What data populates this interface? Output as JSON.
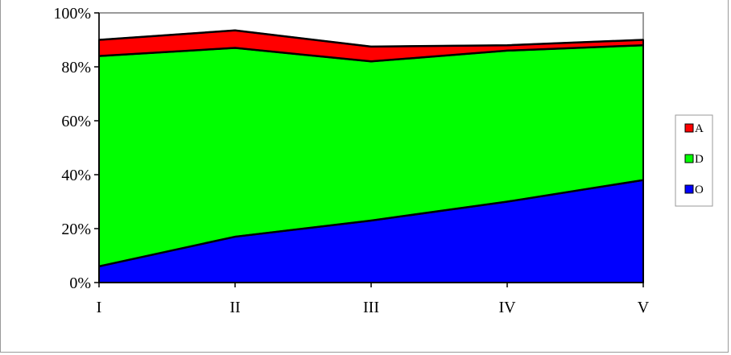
{
  "chart_data": {
    "type": "area",
    "stacked": true,
    "categories": [
      "I",
      "II",
      "III",
      "IV",
      "V"
    ],
    "series": [
      {
        "name": "O",
        "values": [
          6,
          17,
          23,
          30,
          38
        ],
        "color": "#0000ff"
      },
      {
        "name": "D",
        "values": [
          78,
          70,
          59,
          56,
          50
        ],
        "color": "#00ff00"
      },
      {
        "name": "A",
        "values": [
          6,
          6.5,
          5.5,
          2,
          2
        ],
        "color": "#ff0000"
      }
    ],
    "ylim": [
      0,
      100
    ],
    "y_ticks": [
      0,
      20,
      40,
      60,
      80,
      100
    ],
    "y_tick_labels": [
      "0%",
      "20%",
      "40%",
      "60%",
      "80%",
      "100%"
    ],
    "legend_order": [
      "A",
      "D",
      "O"
    ],
    "legend_position": "right",
    "grid": false
  }
}
